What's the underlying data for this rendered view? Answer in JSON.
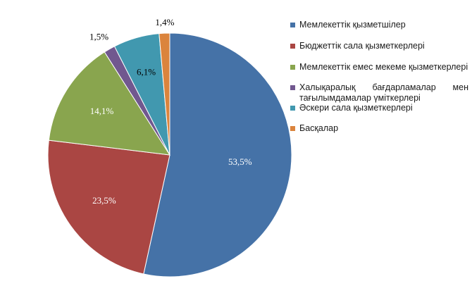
{
  "chart_data": {
    "type": "pie",
    "start_angle_deg": -90,
    "direction": "clockwise",
    "slices": [
      {
        "label": "Мемлекеттік қызметшілер",
        "value": 53.5,
        "value_label": "53,5%",
        "color": "#4572A7",
        "label_color": "#ffffff"
      },
      {
        "label": "Бюджеттік сала қызметкерлері",
        "value": 23.5,
        "value_label": "23,5%",
        "color": "#AA4643",
        "label_color": "#ffffff"
      },
      {
        "label": "Мемлекеттік емес мекеме қызметкерлері",
        "value": 14.1,
        "value_label": "14,1%",
        "color": "#89A54E",
        "label_color": "#ffffff"
      },
      {
        "label": "Халықаралық бағдарламалар мен тағылымдамалар үміткерлері",
        "value": 1.5,
        "value_label": "1,5%",
        "color": "#71588F",
        "label_color": "#000000"
      },
      {
        "label": "Әскери сала қызметкерлері",
        "value": 6.1,
        "value_label": "6,1%",
        "color": "#4198AF",
        "label_color": "#000000"
      },
      {
        "label": "Басқалар",
        "value": 1.4,
        "value_label": "1,4%",
        "color": "#DB843D",
        "label_color": "#000000"
      }
    ],
    "legend": {
      "position": "right",
      "items": [
        "Мемлекеттік қызметшілер",
        "Бюджеттік сала қызметкерлері",
        "Мемлекеттік емес мекеме қызметкерлері",
        "Халықаралық бағдарламалар мен тағылымдамалар үміткерлері",
        "Әскери сала қызметкерлері",
        "Басқалар"
      ]
    }
  }
}
